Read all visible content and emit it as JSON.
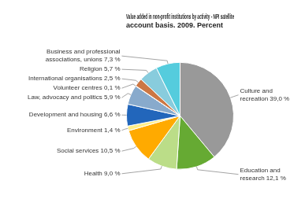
{
  "chart_data": {
    "type": "pie",
    "title": "Value added in non-profit institutions by activity - NPI satellite\naccount basis. 2009. Percent",
    "categories": [
      "Culture and\nrecreation 39,0 %",
      "Education and\nresearch 12,1 %",
      "Health 9,0 %",
      "Social services 10,5 %",
      "Environment 1,4 %",
      "Development and housing 6,6 %",
      "Law, advocacy and politics 5,9 %",
      "Volunteer centres 0,1 %",
      "International organisations 2,5 %",
      "Religion 5,7 %",
      "Business and professional\nassociations, unions 7,3 %"
    ],
    "values": [
      39.0,
      12.1,
      9.0,
      10.5,
      1.4,
      6.6,
      5.9,
      0.1,
      2.5,
      5.7,
      7.3
    ],
    "colors": [
      "#999999",
      "#66aa33",
      "#bbdd88",
      "#ffaa00",
      "#ffee88",
      "#2266bb",
      "#88aacc",
      "#ee9966",
      "#cc7744",
      "#88ccdd",
      "#55ccdd"
    ]
  }
}
